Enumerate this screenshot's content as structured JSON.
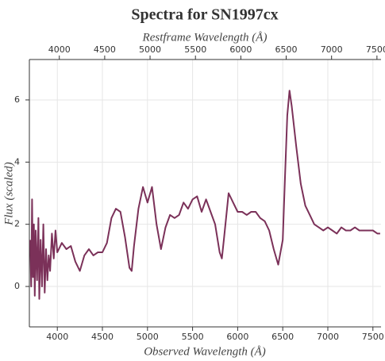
{
  "chart_data": {
    "type": "line",
    "title": "Spectra for SN1997cx",
    "x_label": "Observed Wavelength (Å)",
    "x2_label": "Restframe Wavelength (Å)",
    "y_label": "Flux (scaled)",
    "xlim": [
      3690,
      7590
    ],
    "xticks": [
      4000,
      4500,
      5000,
      5500,
      6000,
      6500,
      7000,
      7500
    ],
    "x2lim": [
      3670,
      7545
    ],
    "x2ticks": [
      4000,
      4500,
      5000,
      5500,
      6000,
      6500,
      7000,
      7500
    ],
    "ylim": [
      -1.3,
      7.3
    ],
    "yticks": [
      0,
      2,
      4,
      6
    ],
    "grid": true,
    "x": [
      3700,
      3710,
      3720,
      3730,
      3740,
      3750,
      3760,
      3775,
      3790,
      3800,
      3815,
      3830,
      3845,
      3860,
      3875,
      3890,
      3905,
      3920,
      3940,
      3960,
      3980,
      4000,
      4050,
      4100,
      4150,
      4200,
      4250,
      4300,
      4350,
      4400,
      4450,
      4500,
      4550,
      4600,
      4650,
      4700,
      4750,
      4800,
      4825,
      4850,
      4900,
      4950,
      5000,
      5050,
      5100,
      5150,
      5200,
      5250,
      5300,
      5350,
      5400,
      5450,
      5500,
      5550,
      5600,
      5650,
      5700,
      5750,
      5800,
      5825,
      5850,
      5900,
      5950,
      6000,
      6050,
      6100,
      6150,
      6200,
      6250,
      6300,
      6350,
      6400,
      6450,
      6500,
      6525,
      6550,
      6575,
      6600,
      6650,
      6700,
      6750,
      6800,
      6850,
      6900,
      6950,
      7000,
      7050,
      7100,
      7150,
      7200,
      7250,
      7300,
      7350,
      7400,
      7450,
      7500,
      7550,
      7580
    ],
    "series": [
      {
        "name": "SN1997cx",
        "color": "#7b3159",
        "values": [
          1.5,
          0.0,
          2.8,
          0.3,
          2.0,
          -0.3,
          1.8,
          0.2,
          2.2,
          -0.4,
          1.5,
          0.0,
          2.0,
          -0.2,
          1.2,
          0.2,
          1.0,
          0.5,
          1.7,
          0.9,
          1.8,
          1.1,
          1.4,
          1.2,
          1.3,
          0.8,
          0.5,
          1.0,
          1.2,
          1.0,
          1.1,
          1.1,
          1.4,
          2.2,
          2.5,
          2.4,
          1.6,
          0.6,
          0.5,
          1.3,
          2.5,
          3.2,
          2.7,
          3.2,
          2.0,
          1.2,
          1.9,
          2.3,
          2.2,
          2.3,
          2.7,
          2.5,
          2.8,
          2.9,
          2.4,
          2.8,
          2.4,
          2.0,
          1.1,
          0.9,
          1.6,
          3.0,
          2.7,
          2.4,
          2.4,
          2.3,
          2.4,
          2.4,
          2.2,
          2.1,
          1.8,
          1.2,
          0.7,
          1.5,
          3.5,
          5.5,
          6.3,
          5.8,
          4.5,
          3.3,
          2.6,
          2.3,
          2.0,
          1.9,
          1.8,
          1.9,
          1.8,
          1.7,
          1.9,
          1.8,
          1.8,
          1.9,
          1.8,
          1.8,
          1.8,
          1.8,
          1.7,
          1.7
        ]
      }
    ]
  }
}
